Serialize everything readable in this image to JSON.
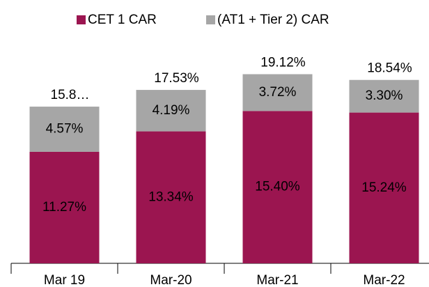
{
  "chart_data": {
    "type": "stacked_bar",
    "categories": [
      "Mar 19",
      "Mar-20",
      "Mar-21",
      "Mar-22"
    ],
    "series": [
      {
        "name": "CET 1 CAR",
        "color": "#9b1550",
        "values": [
          11.27,
          13.34,
          15.4,
          15.24
        ],
        "value_labels": [
          "11.27%",
          "13.34%",
          "15.40%",
          "15.24%"
        ]
      },
      {
        "name": "(AT1 + Tier 2) CAR",
        "color": "#a6a6a6",
        "values": [
          4.57,
          4.19,
          3.72,
          3.3
        ],
        "value_labels": [
          "4.57%",
          "4.19%",
          "3.72%",
          "3.30%"
        ]
      }
    ],
    "totals": {
      "values": [
        15.84,
        17.53,
        19.12,
        18.54
      ],
      "value_labels": [
        "15.8…",
        "17.53%",
        "19.12%",
        "18.54%"
      ]
    },
    "ylim": [
      0,
      25
    ],
    "legend": "top"
  }
}
